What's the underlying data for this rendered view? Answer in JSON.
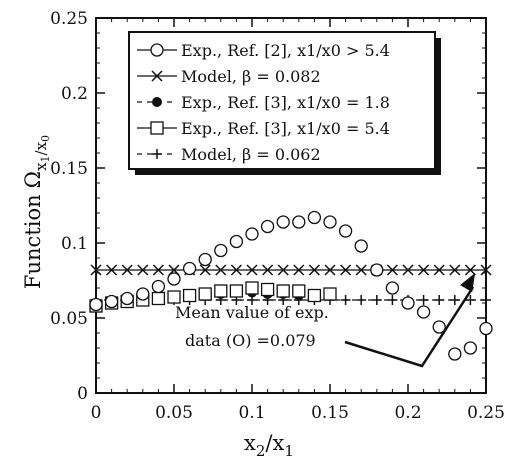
{
  "chart_data": {
    "type": "scatter",
    "xlabel": "x",
    "xlabel_sub1": "2",
    "xlabel_slash": "/x",
    "xlabel_sub2": "1",
    "ylabel": "Function",
    "ylabel_symbol": "Ω",
    "ylabel_sub": "x",
    "ylabel_subsub1": "1",
    "ylabel_subslash": "/x",
    "ylabel_subsub2": "0",
    "xlim": [
      0,
      0.25
    ],
    "ylim": [
      0,
      0.25
    ],
    "xticks": [
      0,
      0.05,
      0.1,
      0.15,
      0.2,
      0.25
    ],
    "xtick_labels": [
      "0",
      "0.05",
      "0.1",
      "0.15",
      "0.2",
      "0.25"
    ],
    "yticks": [
      0,
      0.05,
      0.1,
      0.15,
      0.2,
      0.25
    ],
    "ytick_labels": [
      "0",
      "0.05",
      "0.1",
      "0.15",
      "0.2",
      "0.25"
    ],
    "legend_position": "top-right",
    "series": [
      {
        "name": "Exp., Ref. [2], x1/x0 > 5.4",
        "marker": "open-circle",
        "line": "solid",
        "x": [
          0,
          0.01,
          0.02,
          0.03,
          0.04,
          0.05,
          0.06,
          0.07,
          0.08,
          0.09,
          0.1,
          0.11,
          0.12,
          0.13,
          0.14,
          0.15,
          0.16,
          0.17,
          0.18,
          0.19,
          0.2,
          0.21,
          0.22,
          0.23,
          0.24,
          0.25
        ],
        "y": [
          0.059,
          0.061,
          0.063,
          0.066,
          0.071,
          0.076,
          0.083,
          0.089,
          0.095,
          0.101,
          0.106,
          0.111,
          0.114,
          0.114,
          0.117,
          0.114,
          0.108,
          0.098,
          0.082,
          0.07,
          0.06,
          0.054,
          0.044,
          0.026,
          0.03,
          0.043
        ]
      },
      {
        "name": "Model, β = 0.082",
        "marker": "x",
        "line": "solid",
        "x": [
          0,
          0.01,
          0.02,
          0.03,
          0.04,
          0.05,
          0.06,
          0.07,
          0.08,
          0.09,
          0.1,
          0.11,
          0.12,
          0.13,
          0.14,
          0.15,
          0.16,
          0.17,
          0.18,
          0.19,
          0.2,
          0.21,
          0.22,
          0.23,
          0.24,
          0.25
        ],
        "y": [
          0.082,
          0.082,
          0.082,
          0.082,
          0.082,
          0.082,
          0.082,
          0.082,
          0.082,
          0.082,
          0.082,
          0.082,
          0.082,
          0.082,
          0.082,
          0.082,
          0.082,
          0.082,
          0.082,
          0.082,
          0.082,
          0.082,
          0.082,
          0.082,
          0.082,
          0.082
        ]
      },
      {
        "name": "Exp., Ref. [3], x1/x0 = 1.8",
        "marker": "filled-circle",
        "line": "dashed",
        "x": [
          0,
          0.01,
          0.02,
          0.03,
          0.04,
          0.05,
          0.06,
          0.07,
          0.08,
          0.09,
          0.1,
          0.11,
          0.12,
          0.13,
          0.14
        ],
        "y": [
          0.06,
          0.061,
          0.062,
          0.063,
          0.064,
          0.065,
          0.065,
          0.066,
          0.066,
          0.067,
          0.067,
          0.066,
          0.066,
          0.065,
          0.064
        ]
      },
      {
        "name": "Exp., Ref. [3], x1/x0 = 5.4",
        "marker": "open-square",
        "line": "solid",
        "x": [
          0,
          0.01,
          0.02,
          0.03,
          0.04,
          0.05,
          0.06,
          0.07,
          0.08,
          0.09,
          0.1,
          0.11,
          0.12,
          0.13,
          0.14,
          0.15
        ],
        "y": [
          0.058,
          0.06,
          0.061,
          0.062,
          0.063,
          0.064,
          0.065,
          0.066,
          0.068,
          0.068,
          0.07,
          0.069,
          0.068,
          0.068,
          0.065,
          0.066
        ]
      },
      {
        "name": "Model, β = 0.062",
        "marker": "plus",
        "line": "dashed",
        "x": [
          0,
          0.01,
          0.02,
          0.03,
          0.04,
          0.05,
          0.06,
          0.07,
          0.08,
          0.09,
          0.1,
          0.11,
          0.12,
          0.13,
          0.14,
          0.15,
          0.16,
          0.17,
          0.18,
          0.19,
          0.2,
          0.21,
          0.22,
          0.23,
          0.24,
          0.25
        ],
        "y": [
          0.062,
          0.062,
          0.062,
          0.062,
          0.062,
          0.062,
          0.062,
          0.062,
          0.062,
          0.062,
          0.062,
          0.062,
          0.062,
          0.062,
          0.062,
          0.062,
          0.062,
          0.062,
          0.062,
          0.062,
          0.062,
          0.062,
          0.062,
          0.062,
          0.062,
          0.062
        ]
      }
    ],
    "annotation": {
      "line1": "Mean value of exp.",
      "line2": "data (O) =0.079",
      "arrow_to_x": 0.243,
      "arrow_to_y": 0.082
    }
  }
}
